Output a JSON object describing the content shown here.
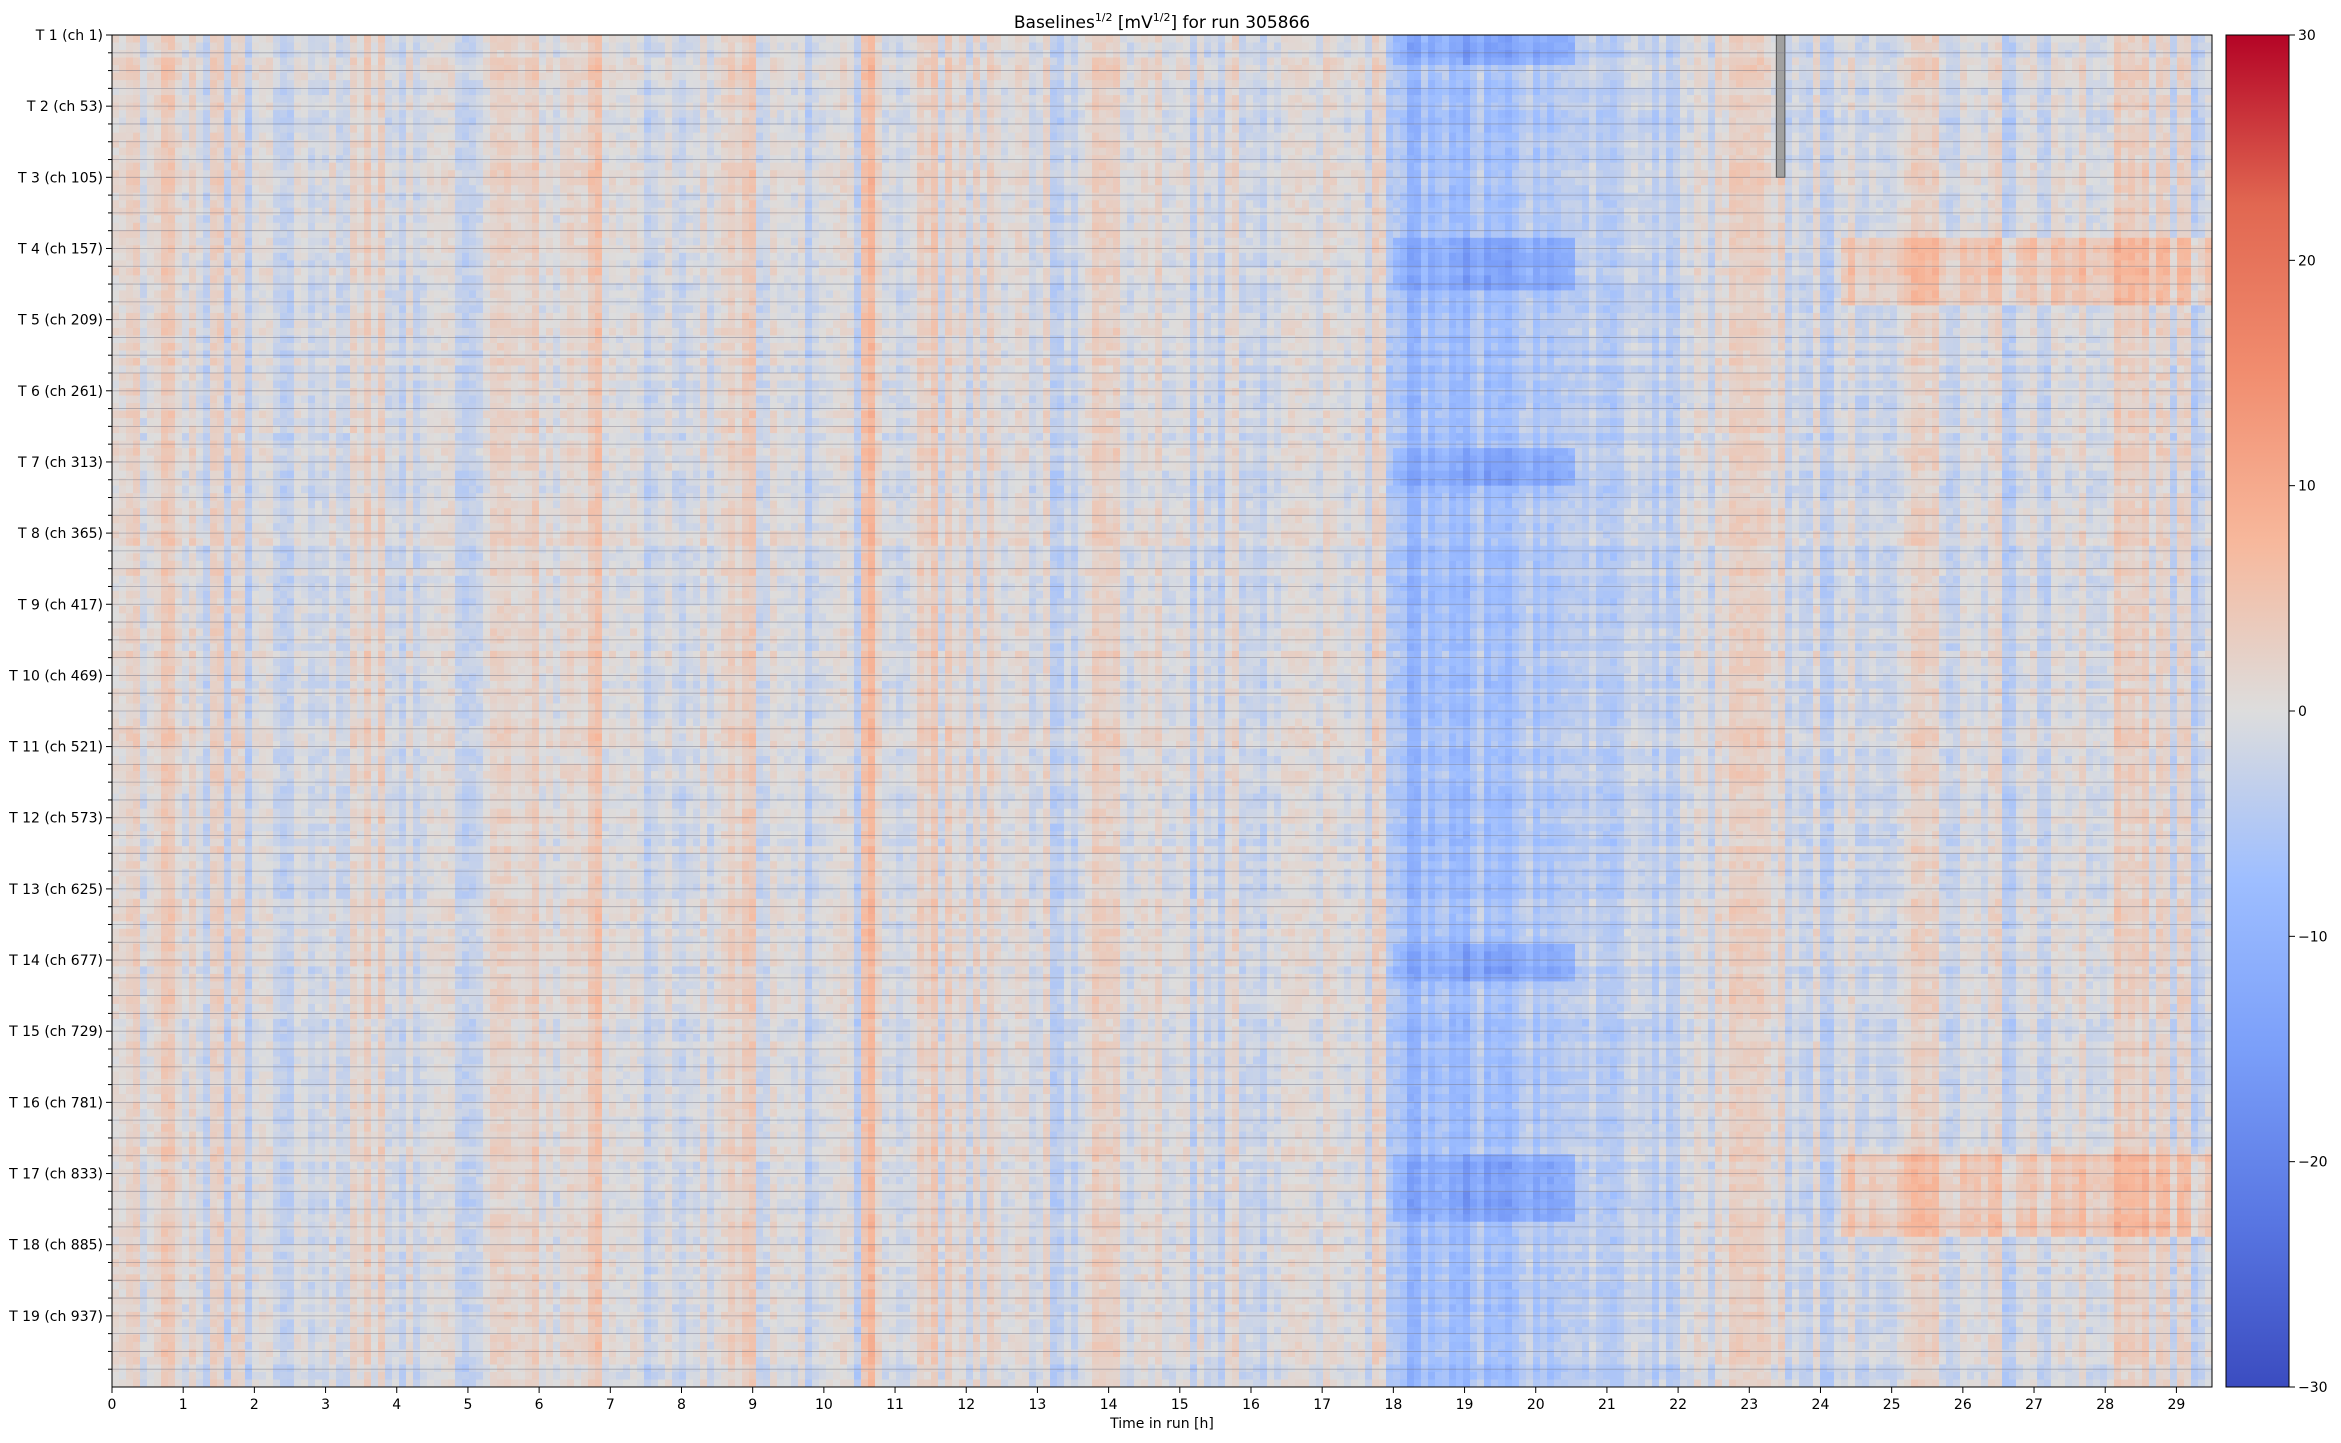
{
  "chart_data": {
    "type": "heatmap",
    "title": {
      "prefix": "Baselines",
      "prefix_sup": "1/2",
      "unit_open": " [mV",
      "unit_sup": "1/2",
      "unit_close": "]",
      "suffix": " for run 305866"
    },
    "xlabel": "Time in run [h]",
    "ylabel": "",
    "xlim": [
      0,
      29.5
    ],
    "x_ticks": [
      0,
      1,
      2,
      3,
      4,
      5,
      6,
      7,
      8,
      9,
      10,
      11,
      12,
      13,
      14,
      15,
      16,
      17,
      18,
      19,
      20,
      21,
      22,
      23,
      24,
      25,
      26,
      27,
      28,
      29
    ],
    "y_labels": [
      "T 1 (ch 1)",
      "T 2 (ch 53)",
      "T 3 (ch 105)",
      "T 4 (ch 157)",
      "T 5 (ch 209)",
      "T 6 (ch 261)",
      "T 7 (ch 313)",
      "T 8 (ch 365)",
      "T 9 (ch 417)",
      "T 10 (ch 469)",
      "T 11 (ch 521)",
      "T 12 (ch 573)",
      "T 13 (ch 625)",
      "T 14 (ch 677)",
      "T 15 (ch 729)",
      "T 16 (ch 781)",
      "T 17 (ch 833)",
      "T 18 (ch 885)",
      "T 19 (ch 937)"
    ],
    "channel_range": [
      1,
      988
    ],
    "rows_per_label": 52,
    "minor_ticks_per_label": 4,
    "colorbar": {
      "colormap": "coolwarm",
      "vmin": -30,
      "vmax": 30,
      "ticks": [
        30,
        20,
        10,
        0,
        -10,
        -20,
        -30
      ]
    },
    "grid": "horizontal lines between modules",
    "values_note": "dense per-channel baseline deviations, mostly within -8..+8",
    "features": [
      {
        "x_range": [
          18.0,
          20.6
        ],
        "level": -9,
        "note": "negative (blue) band in many modules"
      },
      {
        "x_range": [
          19.0,
          20.6
        ],
        "level": -13,
        "note": "strong dips near T 1, T 4, T 7, T 14, T 17"
      },
      {
        "x_range": [
          23.4,
          23.5
        ],
        "rows": "T 1 - T 3",
        "note": "missing data (grey)"
      },
      {
        "x_range": [
          6.7,
          6.9
        ],
        "level": 6,
        "note": "positive (red) stripe"
      },
      {
        "x_range": [
          10.5,
          10.7
        ],
        "level": 6,
        "note": "positive (red) stripe"
      },
      {
        "x_range": [
          24.3,
          29.5
        ],
        "rows": "T 4 and T 17 modules",
        "level": 8,
        "note": "positive (red) region"
      }
    ]
  }
}
